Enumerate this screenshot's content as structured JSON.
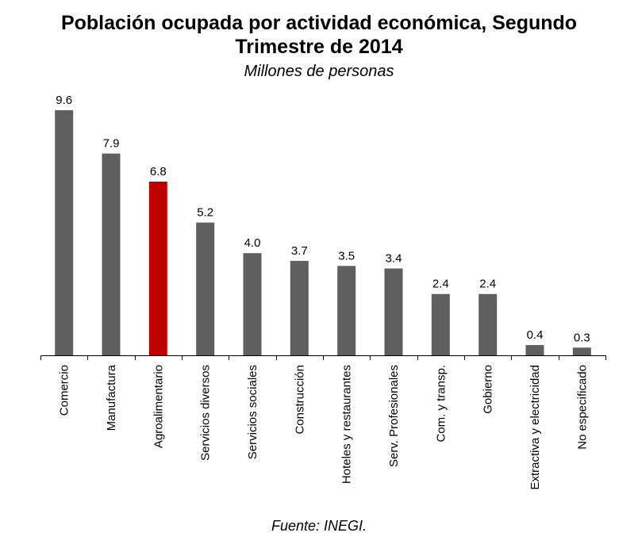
{
  "header": {
    "title_line1": "Población ocupada por actividad económica, Segundo",
    "title_line2": "Trimestre de 2014",
    "subtitle": "Millones de personas"
  },
  "footer": {
    "source": "Fuente: INEGI."
  },
  "colors": {
    "bar_default": "#5f5f5f",
    "bar_highlight": "#c00000",
    "axis": "#000000"
  },
  "chart_data": {
    "type": "bar",
    "title": "Población ocupada por actividad económica, Segundo Trimestre de 2014",
    "subtitle": "Millones de personas",
    "xlabel": "",
    "ylabel": "",
    "ylim": [
      0,
      10
    ],
    "grid": false,
    "legend": "none",
    "categories": [
      "Comercio",
      "Manufactura",
      "Agroalimentario",
      "Servicios diversos",
      "Servicios sociales",
      "Construcción",
      "Hoteles y restaurantes",
      "Serv. Profesionales",
      "Com. y transp.",
      "Gobierno",
      "Extractiva y electricidad",
      "No especificado"
    ],
    "values": [
      9.6,
      7.9,
      6.8,
      5.2,
      4.0,
      3.7,
      3.5,
      3.4,
      2.4,
      2.4,
      0.4,
      0.3
    ],
    "data_labels": [
      "9.6",
      "7.9",
      "6.8",
      "5.2",
      "4.0",
      "3.7",
      "3.5",
      "3.4",
      "2.4",
      "2.4",
      "0.4",
      "0.3"
    ],
    "highlighted_category": "Agroalimentario"
  }
}
